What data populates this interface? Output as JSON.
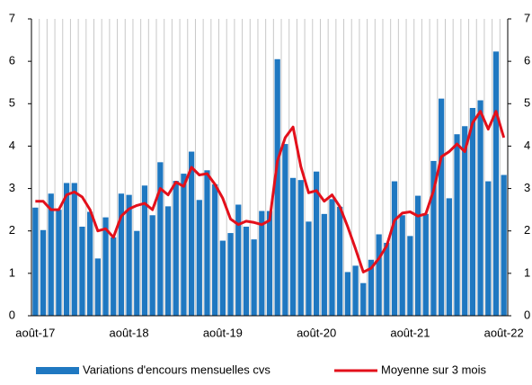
{
  "chart_data": {
    "type": "combo",
    "categories": [
      "août-17",
      null,
      null,
      null,
      null,
      null,
      null,
      null,
      null,
      null,
      null,
      null,
      "août-18",
      null,
      null,
      null,
      null,
      null,
      null,
      null,
      null,
      null,
      null,
      null,
      "août-19",
      null,
      null,
      null,
      null,
      null,
      null,
      null,
      null,
      null,
      null,
      null,
      "août-20",
      null,
      null,
      null,
      null,
      null,
      null,
      null,
      null,
      null,
      null,
      null,
      "août-21",
      null,
      null,
      null,
      null,
      null,
      null,
      null,
      null,
      null,
      null,
      null,
      "août-22"
    ],
    "series": [
      {
        "name": "Variations d'encours mensuelles cvs",
        "type": "bar",
        "color": "#1f78c1",
        "values": [
          2.55,
          2.02,
          2.88,
          2.5,
          3.13,
          3.13,
          2.1,
          2.45,
          1.35,
          2.32,
          1.85,
          2.88,
          2.85,
          2.0,
          3.07,
          2.37,
          3.62,
          2.58,
          3.18,
          3.35,
          3.87,
          2.73,
          3.43,
          3.1,
          1.77,
          1.95,
          2.62,
          2.1,
          1.8,
          2.47,
          2.47,
          6.05,
          4.05,
          3.25,
          3.2,
          2.22,
          3.4,
          2.4,
          2.75,
          2.57,
          1.03,
          1.18,
          0.77,
          1.32,
          1.92,
          1.72,
          3.17,
          2.37,
          1.88,
          2.83,
          2.4,
          3.65,
          5.12,
          2.77,
          4.28,
          4.47,
          4.9,
          5.08,
          3.17,
          6.23,
          3.32
        ]
      },
      {
        "name": "Moyenne sur 3 mois",
        "type": "line",
        "color": "#e3101b",
        "values": [
          2.7,
          2.7,
          2.5,
          2.5,
          2.85,
          2.92,
          2.8,
          2.5,
          2.0,
          2.05,
          1.85,
          2.35,
          2.52,
          2.6,
          2.65,
          2.5,
          3.0,
          2.85,
          3.15,
          3.05,
          3.5,
          3.32,
          3.35,
          3.1,
          2.77,
          2.28,
          2.15,
          2.23,
          2.2,
          2.15,
          2.25,
          3.65,
          4.2,
          4.45,
          3.52,
          2.9,
          2.95,
          2.7,
          2.85,
          2.57,
          2.1,
          1.58,
          1.03,
          1.12,
          1.35,
          1.65,
          2.25,
          2.42,
          2.45,
          2.35,
          2.4,
          2.95,
          3.75,
          3.87,
          4.05,
          3.87,
          4.55,
          4.82,
          4.4,
          4.82,
          4.2
        ]
      }
    ],
    "ylim": [
      0,
      7
    ],
    "yticks": [
      0,
      1,
      2,
      3,
      4,
      5,
      6,
      7
    ],
    "y2lim": [
      0,
      7
    ],
    "y2ticks": [
      0,
      1,
      2,
      3,
      4,
      5,
      6,
      7
    ],
    "legend": "bottom"
  }
}
